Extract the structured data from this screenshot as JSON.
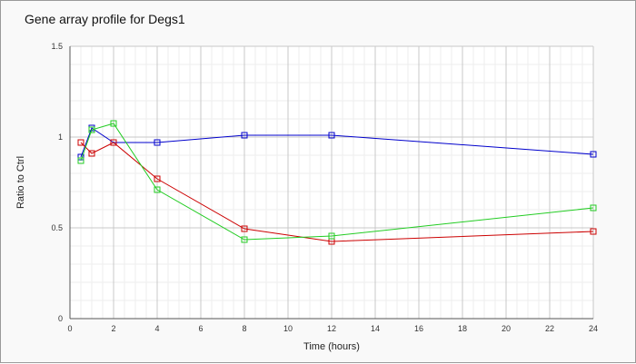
{
  "chart_data": {
    "type": "line",
    "title": "Gene array profile for Degs1",
    "xlabel": "Time (hours)",
    "ylabel": "Ratio to Ctrl",
    "xlim": [
      0,
      24
    ],
    "ylim": [
      0,
      1.5
    ],
    "x_ticks": [
      0,
      2,
      4,
      6,
      8,
      10,
      12,
      14,
      16,
      18,
      20,
      22,
      24
    ],
    "y_ticks": [
      0,
      0.5,
      1,
      1.5
    ],
    "y_tick_labels": [
      "0",
      "0.5",
      "1",
      "1.5"
    ],
    "grid": true,
    "legend": false,
    "series": [
      {
        "color": "#0000cc",
        "marker": "square",
        "x": [
          0.5,
          1,
          2,
          4,
          8,
          12,
          24
        ],
        "y": [
          0.89,
          1.05,
          0.97,
          0.97,
          1.01,
          1.01,
          0.905
        ]
      },
      {
        "color": "#cc0000",
        "marker": "square",
        "x": [
          0.5,
          1,
          2,
          4,
          8,
          12,
          24
        ],
        "y": [
          0.97,
          0.91,
          0.97,
          0.77,
          0.495,
          0.425,
          0.48
        ]
      },
      {
        "color": "#22cc22",
        "marker": "square",
        "x": [
          0.5,
          1,
          2,
          4,
          8,
          12,
          24
        ],
        "y": [
          0.87,
          1.04,
          1.075,
          0.71,
          0.435,
          0.455,
          0.61
        ]
      }
    ]
  }
}
